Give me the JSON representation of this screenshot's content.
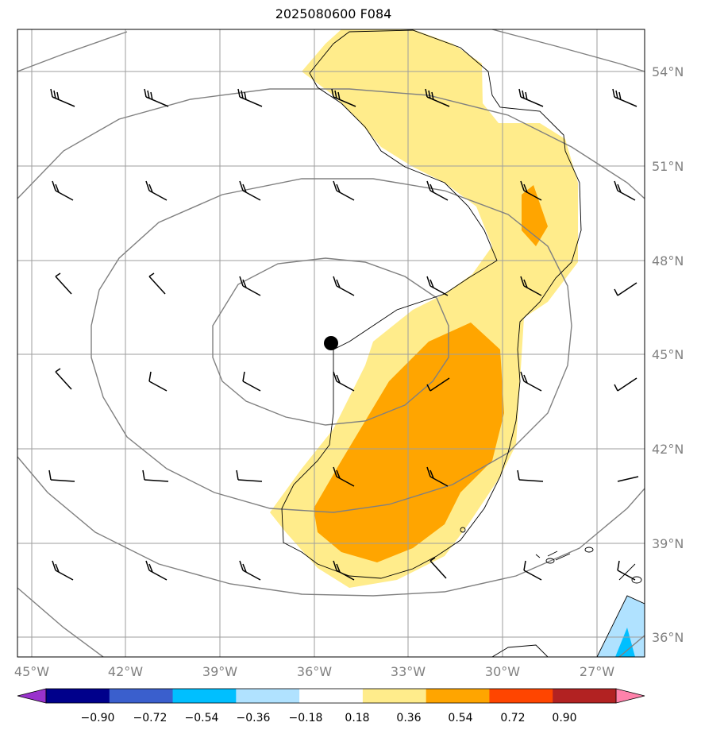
{
  "title": "2025080600 F084",
  "lon_labels": [
    "45°W",
    "42°W",
    "39°W",
    "36°W",
    "33°W",
    "30°W",
    "27°W"
  ],
  "lat_labels": [
    "54°N",
    "51°N",
    "48°N",
    "45°N",
    "42°N",
    "39°N",
    "36°N"
  ],
  "colorbar": {
    "labels": [
      "−0.90",
      "−0.72",
      "−0.54",
      "−0.36",
      "−0.18",
      "0.18",
      "0.36",
      "0.54",
      "0.72",
      "0.90"
    ],
    "colors": [
      "#9932cc",
      "#00008b",
      "#3a5fcd",
      "#00bfff",
      "#b0e2ff",
      "#ffffff",
      "#ffec8b",
      "#ffa500",
      "#ff4500",
      "#b22222",
      "#ff82ab"
    ]
  },
  "colors": {
    "grid": "#9e9e9e",
    "contour": "#808080",
    "coast": "#000000",
    "light_positive": "#ffec8b",
    "positive": "#ffa500",
    "light_negative": "#b0e2ff",
    "negative": "#00bfff"
  },
  "markers": [
    {
      "name": "low-center",
      "lon": -35.5,
      "lat": 45.4
    }
  ]
}
